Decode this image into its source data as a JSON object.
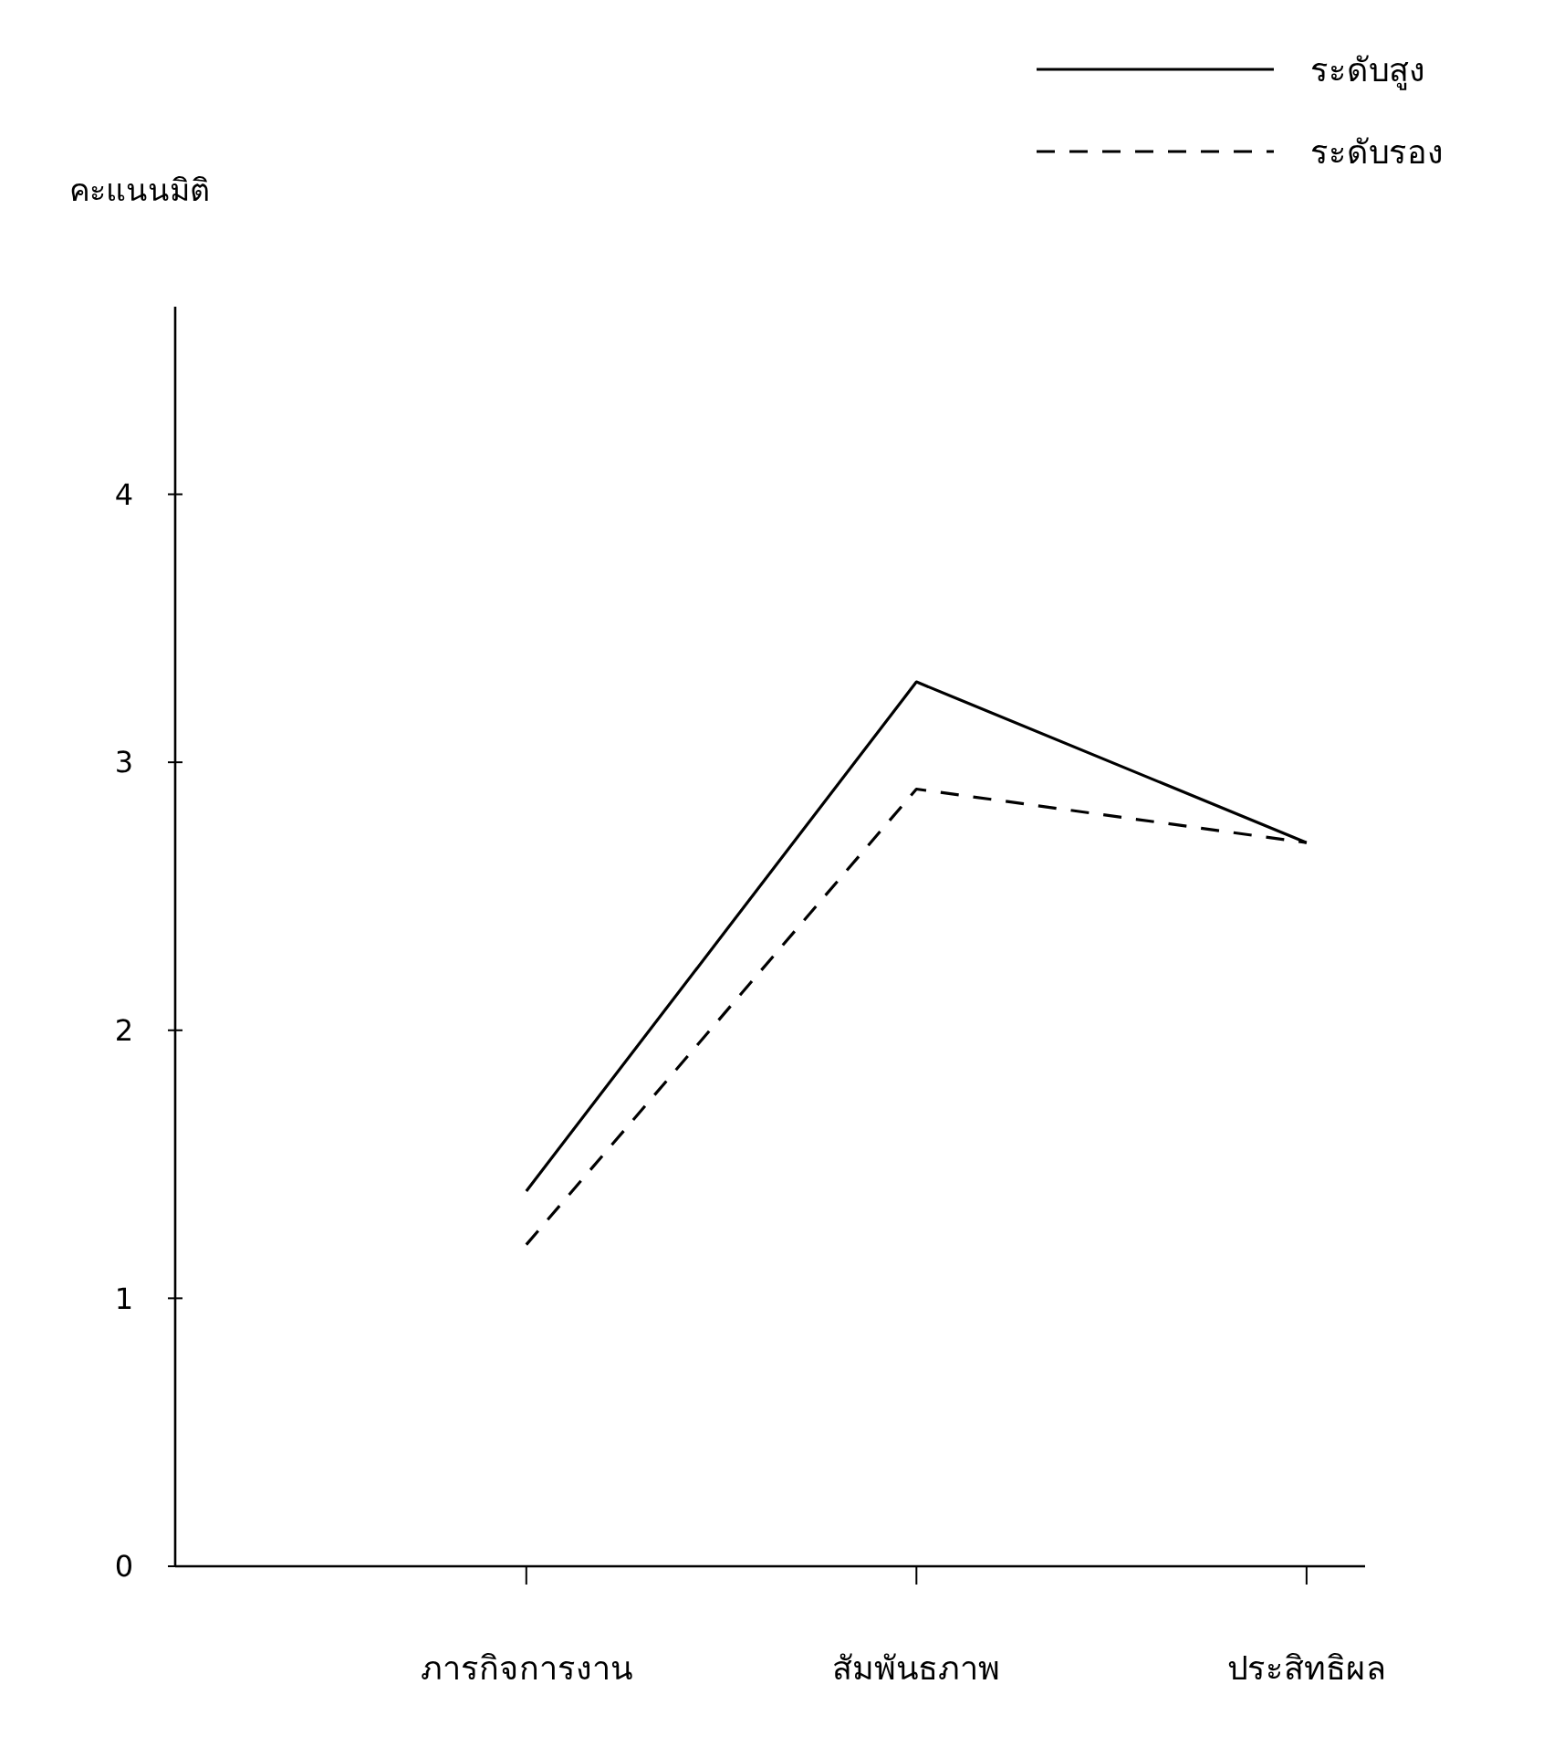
{
  "chart_data": {
    "type": "line",
    "ylabel": "คะแนนมิติ",
    "categories": [
      "ภารกิจการงาน",
      "สัมพันธภาพ",
      "ประสิทธิผล"
    ],
    "series": [
      {
        "name": "ระดับสูง",
        "color": "#000000",
        "line_style": "solid",
        "values": [
          1.4,
          3.3,
          2.7
        ]
      },
      {
        "name": "ระดับรอง",
        "color": "#000000",
        "line_style": "dashed",
        "values": [
          1.2,
          2.9,
          2.7
        ]
      }
    ],
    "ylim": [
      0,
      4.7
    ],
    "yticks": [
      0,
      1,
      2,
      3,
      4
    ],
    "grid": false,
    "legend": "top right",
    "marker": "none"
  }
}
